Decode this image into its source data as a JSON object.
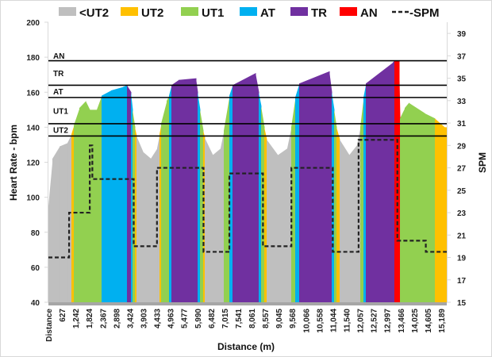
{
  "chart_data": {
    "type": "area",
    "xlabel": "Distance (m)",
    "ylabel": "Heart Rate - bpm",
    "y2label": "SPM",
    "ylim": [
      40,
      200
    ],
    "y2lim": [
      15,
      40
    ],
    "yticks": [
      40,
      60,
      80,
      100,
      120,
      140,
      160,
      180,
      200
    ],
    "y2ticks": [
      15,
      17,
      19,
      21,
      23,
      25,
      27,
      29,
      31,
      33,
      35,
      37,
      39
    ],
    "xlim": [
      0,
      15411
    ],
    "xtick_labels": [
      "Distance",
      "627",
      "1,242",
      "1,824",
      "2,367",
      "2,898",
      "3,424",
      "3,903",
      "4,433",
      "4,963",
      "5,477",
      "5,990",
      "6,482",
      "7,015",
      "7,541",
      "8,061",
      "8,557",
      "9,045",
      "9,568",
      "10,066",
      "10,558",
      "11,044",
      "11,540",
      "12,057",
      "12,527",
      "12,997",
      "13,466",
      "14,025",
      "14,605",
      "15,189"
    ],
    "legend": [
      {
        "name": "<UT2",
        "color": "#bfbfbf",
        "kind": "area"
      },
      {
        "name": "UT2",
        "color": "#ffc000",
        "kind": "area"
      },
      {
        "name": "UT1",
        "color": "#92d050",
        "kind": "area"
      },
      {
        "name": "AT",
        "color": "#00b0f0",
        "kind": "area"
      },
      {
        "name": "TR",
        "color": "#7030a0",
        "kind": "area"
      },
      {
        "name": "AN",
        "color": "#ff0000",
        "kind": "area"
      },
      {
        "name": "SPM",
        "color": "#222222",
        "kind": "dashed-line"
      }
    ],
    "legend_position": "top",
    "zone_lines": [
      {
        "label": "AN",
        "hr": 178
      },
      {
        "label": "TR",
        "hr": 164
      },
      {
        "label": "AT",
        "hr": 157
      },
      {
        "label": "UT1",
        "hr": 142
      },
      {
        "label": "UT2",
        "hr": 135
      }
    ],
    "heart_rate": [
      [
        0,
        95,
        "<UT2"
      ],
      [
        154,
        122,
        "<UT2"
      ],
      [
        430,
        129,
        "<UT2"
      ],
      [
        737,
        131,
        "<UT2"
      ],
      [
        890,
        136,
        "UT2"
      ],
      [
        982,
        141,
        "UT1"
      ],
      [
        1197,
        151,
        "UT1"
      ],
      [
        1443,
        155,
        "UT1"
      ],
      [
        1596,
        150,
        "UT1"
      ],
      [
        1873,
        150,
        "UT1"
      ],
      [
        2057,
        158,
        "AT"
      ],
      [
        2425,
        161,
        "AT"
      ],
      [
        2886,
        163,
        "AT"
      ],
      [
        3039,
        164,
        "TR"
      ],
      [
        3193,
        160,
        "AT"
      ],
      [
        3254,
        150,
        "UT1"
      ],
      [
        3346,
        140,
        "UT2"
      ],
      [
        3408,
        135,
        "<UT2"
      ],
      [
        3653,
        126,
        "<UT2"
      ],
      [
        3960,
        122,
        "<UT2"
      ],
      [
        4206,
        128,
        "<UT2"
      ],
      [
        4298,
        136,
        "UT2"
      ],
      [
        4359,
        142,
        "UT1"
      ],
      [
        4574,
        155,
        "UT1"
      ],
      [
        4666,
        158,
        "AT"
      ],
      [
        4759,
        164,
        "TR"
      ],
      [
        5035,
        167,
        "TR"
      ],
      [
        5710,
        168,
        "TR"
      ],
      [
        5772,
        160,
        "AT"
      ],
      [
        5864,
        150,
        "UT1"
      ],
      [
        5987,
        138,
        "UT2"
      ],
      [
        6048,
        134,
        "<UT2"
      ],
      [
        6355,
        124,
        "<UT2"
      ],
      [
        6662,
        128,
        "<UT2"
      ],
      [
        6785,
        138,
        "UT1"
      ],
      [
        7000,
        158,
        "AT"
      ],
      [
        7122,
        164,
        "TR"
      ],
      [
        8013,
        171,
        "TR"
      ],
      [
        8136,
        160,
        "AT"
      ],
      [
        8228,
        152,
        "UT1"
      ],
      [
        8350,
        140,
        "UT2"
      ],
      [
        8443,
        133,
        "<UT2"
      ],
      [
        8872,
        124,
        "<UT2"
      ],
      [
        9241,
        128,
        "<UT2"
      ],
      [
        9394,
        140,
        "UT1"
      ],
      [
        9548,
        157,
        "AT"
      ],
      [
        9701,
        165,
        "TR"
      ],
      [
        10868,
        172,
        "TR"
      ],
      [
        10960,
        160,
        "AT"
      ],
      [
        11052,
        150,
        "UT1"
      ],
      [
        11144,
        140,
        "UT2"
      ],
      [
        11267,
        133,
        "<UT2"
      ],
      [
        11635,
        124,
        "<UT2"
      ],
      [
        11942,
        130,
        "<UT2"
      ],
      [
        12065,
        140,
        "UT1"
      ],
      [
        12188,
        157,
        "AT"
      ],
      [
        12280,
        165,
        "TR"
      ],
      [
        13324,
        177,
        "TR"
      ],
      [
        13385,
        178,
        "AN"
      ],
      [
        13569,
        178,
        "AN"
      ],
      [
        13600,
        145,
        "UT1"
      ],
      [
        13784,
        151,
        "UT1"
      ],
      [
        13938,
        154,
        "UT1"
      ],
      [
        14552,
        148,
        "UT1"
      ],
      [
        14951,
        145,
        "UT2"
      ],
      [
        15319,
        140,
        "UT2"
      ],
      [
        15411,
        140,
        "UT2"
      ]
    ],
    "spm": [
      [
        0,
        19
      ],
      [
        800,
        23
      ],
      [
        1600,
        29
      ],
      [
        1700,
        26
      ],
      [
        3300,
        20
      ],
      [
        4200,
        27
      ],
      [
        6000,
        19.5
      ],
      [
        7000,
        26.5
      ],
      [
        8300,
        20
      ],
      [
        9400,
        27
      ],
      [
        11000,
        19.5
      ],
      [
        12000,
        29.5
      ],
      [
        13500,
        20.5
      ],
      [
        14600,
        19.5
      ],
      [
        15411,
        19.5
      ]
    ]
  }
}
